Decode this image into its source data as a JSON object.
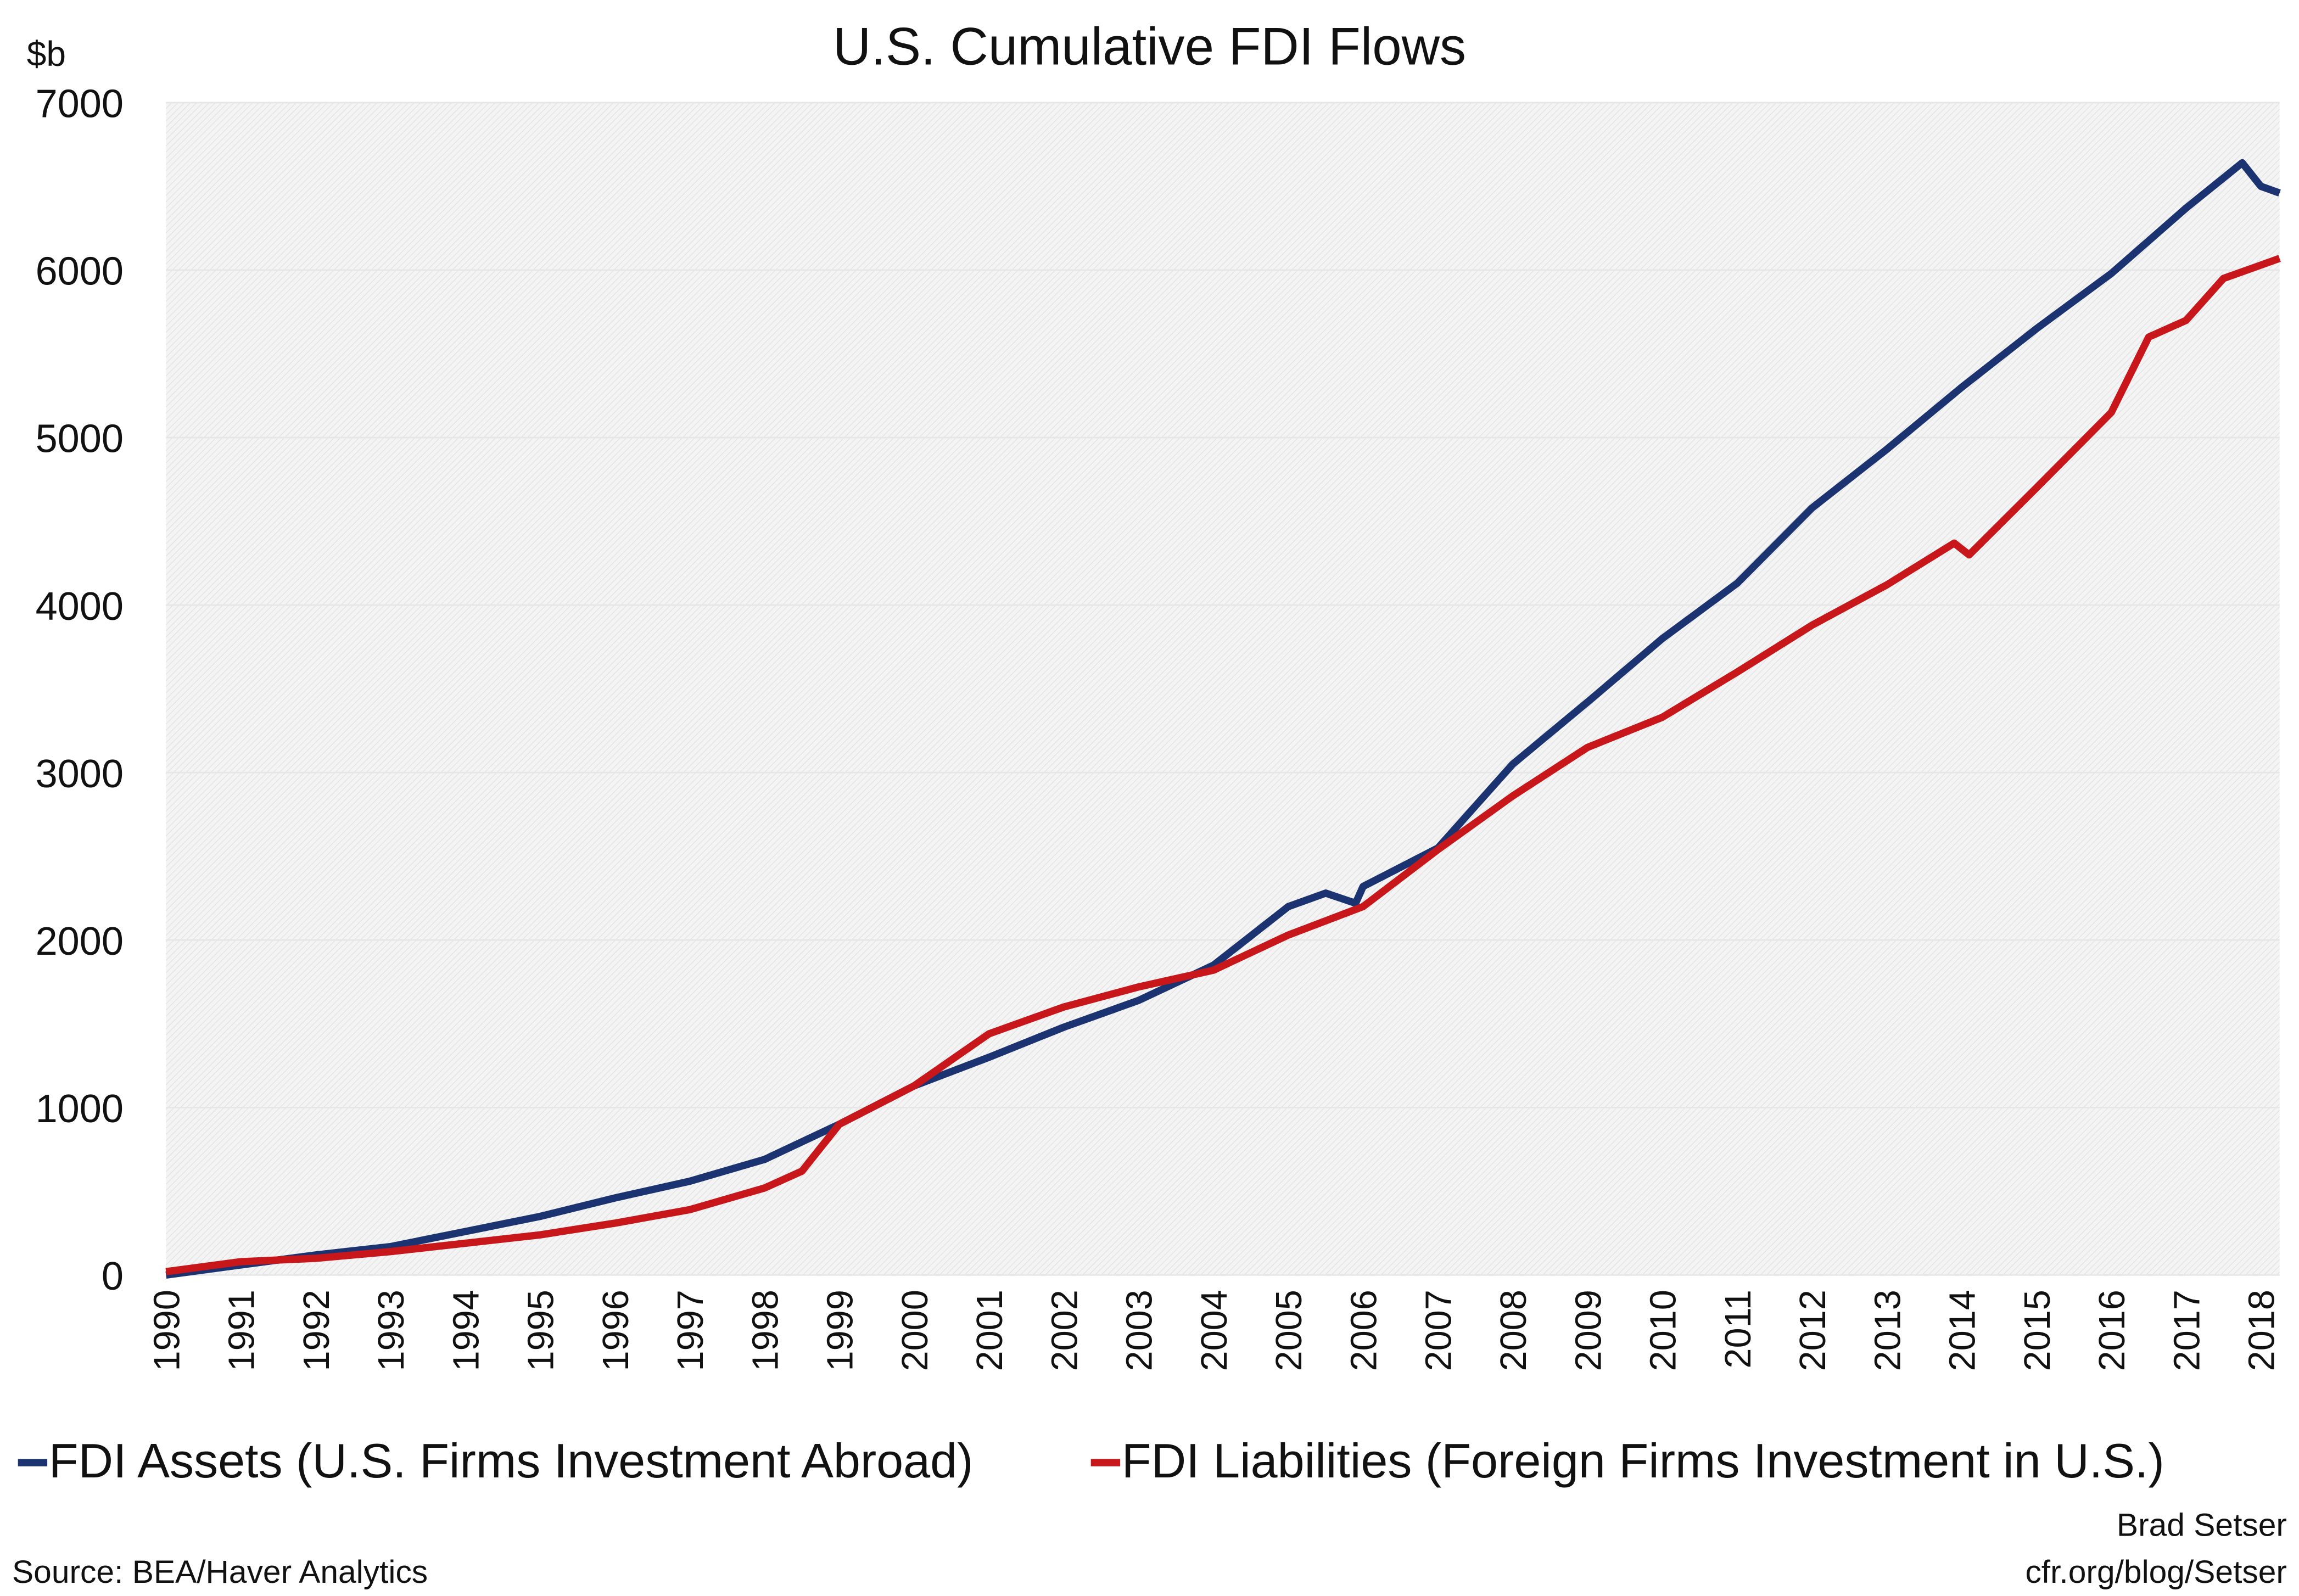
{
  "chart_data": {
    "type": "line",
    "title": "U.S. Cumulative FDI Flows",
    "ylabel": "$b",
    "xlabel": "",
    "ylim": [
      0,
      7000
    ],
    "xlim": [
      1990,
      2018.25
    ],
    "yticks": [
      "0",
      "1000",
      "2000",
      "3000",
      "4000",
      "5000",
      "6000",
      "7000"
    ],
    "xticks": [
      "1990",
      "1991",
      "1992",
      "1993",
      "1994",
      "1995",
      "1996",
      "1997",
      "1998",
      "1999",
      "2000",
      "2001",
      "2002",
      "2003",
      "2004",
      "2005",
      "2006",
      "2007",
      "2008",
      "2009",
      "2010",
      "2011",
      "2012",
      "2013",
      "2014",
      "2015",
      "2016",
      "2017",
      "2018"
    ],
    "grid": true,
    "legend_position": "bottom",
    "series": [
      {
        "name": "FDI Assets (U.S. Firms Investment Abroad)",
        "color": "#1b3370",
        "x": [
          1990,
          1991,
          1992,
          1993,
          1994,
          1995,
          1996,
          1997,
          1998,
          1999,
          2000,
          2001,
          2002,
          2003,
          2004,
          2005,
          2005.5,
          2005.9,
          2006,
          2007,
          2008,
          2009,
          2010,
          2011,
          2012,
          2013,
          2014,
          2015,
          2016,
          2017,
          2017.75,
          2018,
          2018.25
        ],
        "y": [
          0,
          60,
          120,
          170,
          260,
          350,
          460,
          560,
          690,
          900,
          1130,
          1300,
          1480,
          1640,
          1850,
          2200,
          2280,
          2220,
          2320,
          2550,
          3050,
          3420,
          3800,
          4130,
          4580,
          4930,
          5300,
          5650,
          5980,
          6370,
          6640,
          6500,
          6460
        ]
      },
      {
        "name": "FDI Liabilities (Foreign Firms Investment in U.S.)",
        "color": "#c8171b",
        "x": [
          1990,
          1991,
          1992,
          1993,
          1994,
          1995,
          1996,
          1997,
          1998,
          1998.5,
          1998.75,
          1999,
          2000,
          2001,
          2002,
          2003,
          2004,
          2005,
          2006,
          2007,
          2008,
          2009,
          2010,
          2011,
          2012,
          2013,
          2013.9,
          2014.1,
          2015,
          2016,
          2016.5,
          2017,
          2017.5,
          2018,
          2018.25
        ],
        "y": [
          20,
          80,
          100,
          140,
          190,
          240,
          310,
          390,
          520,
          620,
          760,
          900,
          1130,
          1440,
          1600,
          1720,
          1820,
          2030,
          2200,
          2540,
          2860,
          3150,
          3330,
          3600,
          3880,
          4120,
          4370,
          4300,
          4700,
          5150,
          5600,
          5700,
          5950,
          6030,
          6070
        ]
      }
    ]
  },
  "footer": {
    "author": "Brad Setser",
    "url": "cfr.org/blog/Setser",
    "source": "Source: BEA/Haver Analytics"
  }
}
